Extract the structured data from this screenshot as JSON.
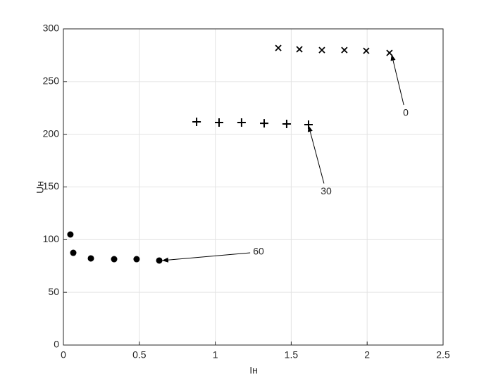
{
  "chart_data": {
    "type": "scatter",
    "xlabel": "Iн",
    "ylabel": "Uн",
    "xlim": [
      0,
      2.5
    ],
    "ylim": [
      0,
      300
    ],
    "xticks": [
      0,
      0.5,
      1,
      1.5,
      2,
      2.5
    ],
    "yticks": [
      0,
      50,
      100,
      150,
      200,
      250,
      300
    ],
    "grid": true,
    "series": [
      {
        "marker": "x",
        "color": "#000000",
        "x": [
          1.415,
          1.554,
          1.702,
          1.85,
          1.994,
          2.147
        ],
        "values": [
          281.9,
          280.6,
          279.9,
          279.9,
          279.2,
          277.2
        ]
      },
      {
        "marker": "+",
        "color": "#000000",
        "x": [
          0.877,
          1.025,
          1.173,
          1.322,
          1.47,
          1.614
        ],
        "values": [
          211.8,
          211.1,
          211.1,
          210.4,
          209.8,
          209.1
        ]
      },
      {
        "marker": "o",
        "color": "#000000",
        "x": [
          0.046,
          0.065,
          0.181,
          0.334,
          0.482,
          0.631
        ],
        "values": [
          104.9,
          87.5,
          82.2,
          81.5,
          81.5,
          80.2
        ]
      }
    ],
    "annotations": [
      {
        "text": "0",
        "x": 2.254,
        "y": 220,
        "arrow_x": 2.161,
        "arrow_y": 275.9
      },
      {
        "text": "30",
        "x": 1.73,
        "y": 145.6,
        "arrow_x": 1.614,
        "arrow_y": 208.4
      },
      {
        "text": "60",
        "x": 1.285,
        "y": 88.2,
        "arrow_x": 0.649,
        "arrow_y": 80.2
      }
    ]
  }
}
